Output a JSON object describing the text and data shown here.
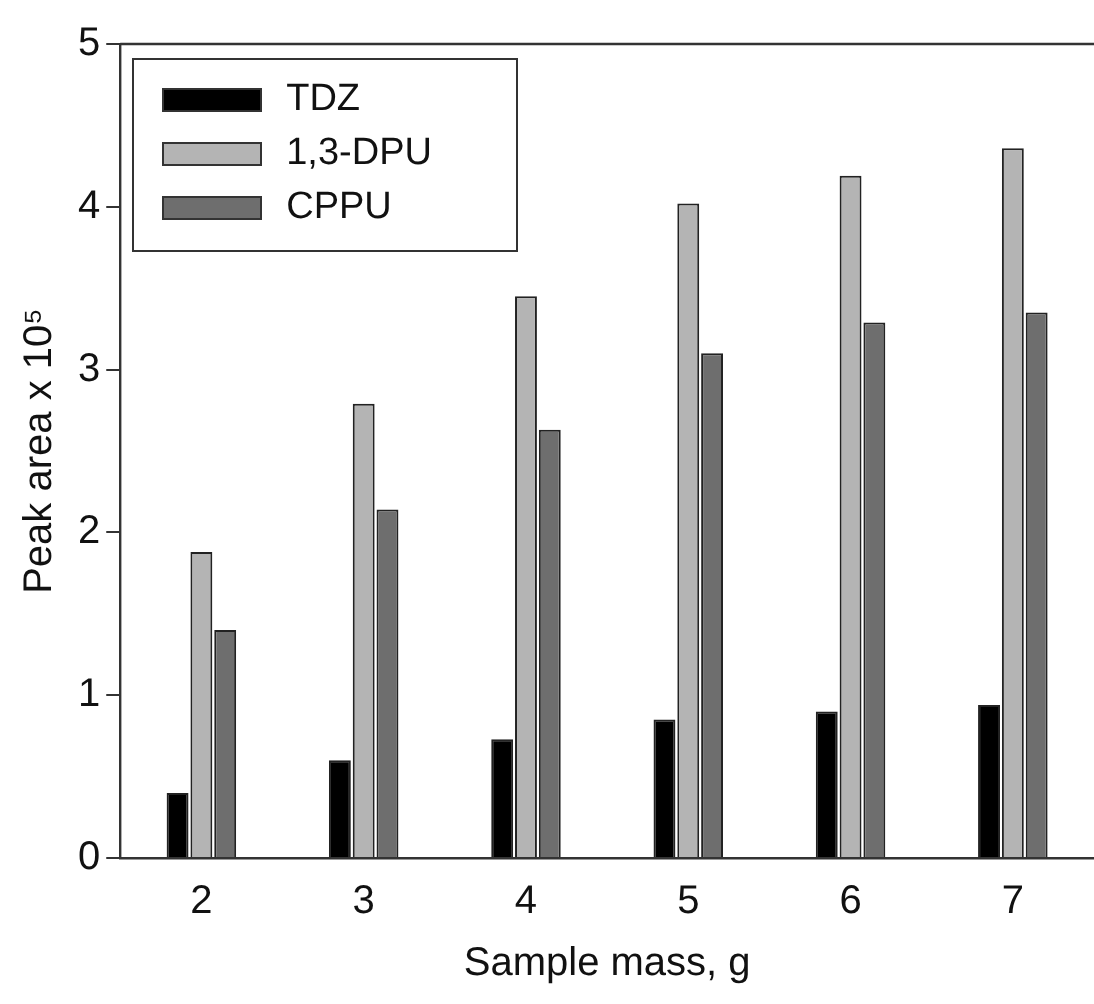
{
  "chart_data": {
    "type": "bar",
    "xlabel": "Sample mass, g",
    "ylabel": "Peak area x 10⁵",
    "categories": [
      "2",
      "3",
      "4",
      "5",
      "6",
      "7"
    ],
    "series": [
      {
        "name": "TDZ",
        "color": "#000000",
        "values": [
          0.4,
          0.6,
          0.73,
          0.85,
          0.9,
          0.94
        ]
      },
      {
        "name": "1,3-DPU",
        "color": "#b4b4b4",
        "values": [
          1.88,
          2.79,
          3.45,
          4.02,
          4.19,
          4.36
        ]
      },
      {
        "name": "CPPU",
        "color": "#6e6e6e",
        "values": [
          1.4,
          2.14,
          2.63,
          3.1,
          3.29,
          3.35
        ]
      }
    ],
    "ylim": [
      0,
      5
    ],
    "yticks": [
      0,
      1,
      2,
      3,
      4,
      5
    ],
    "grid": false,
    "legend": "top left"
  }
}
